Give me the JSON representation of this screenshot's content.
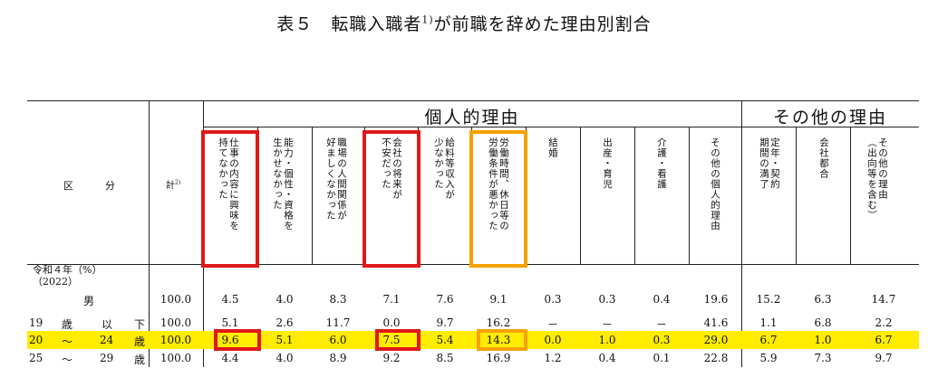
{
  "title": {
    "prefix": "表５　転職入職者",
    "sup": "1)",
    "rest": "が前職を辞めた理由別割合"
  },
  "header": {
    "personal": "個人的理由",
    "other": "その他の理由",
    "kubun_left": "区",
    "kubun_right": "分",
    "total": "計",
    "total_sup": "2)",
    "columns": [
      "仕事の内容に興味を\n持てなかった",
      "能力・個性・資格を\n生かせなかった",
      "職場の人間関係が\n好ましくなかった",
      "会社の将来が\n不安だった",
      "給料等収入が\n少なかった",
      "労働時間、休日等の\n労働条件が悪かった",
      "結婚",
      "出産・育児",
      "介護・看護",
      "その他の個人的理由",
      "定年・契約\n期間の満了",
      "会社都合",
      "その他の理由\n（出向等を含む）"
    ]
  },
  "year": {
    "line1": "令和４年（%）",
    "line2": "（2022）"
  },
  "rows": [
    {
      "labels": [
        "男"
      ],
      "total": "100.0",
      "values": [
        "4.5",
        "4.0",
        "8.3",
        "7.1",
        "7.6",
        "9.1",
        "0.3",
        "0.3",
        "0.4",
        "19.6",
        "15.2",
        "6.3",
        "14.7"
      ]
    },
    {
      "labels": [
        "19",
        "歳",
        "以",
        "下"
      ],
      "total": "100.0",
      "values": [
        "5.1",
        "2.6",
        "11.7",
        "0.0",
        "9.7",
        "16.2",
        "－",
        "－",
        "－",
        "41.6",
        "1.1",
        "6.8",
        "2.2"
      ]
    },
    {
      "labels": [
        "20",
        "～",
        "24",
        "歳"
      ],
      "total": "100.0",
      "values": [
        "9.6",
        "5.1",
        "6.0",
        "7.5",
        "5.4",
        "14.3",
        "0.0",
        "1.0",
        "0.3",
        "29.0",
        "6.7",
        "1.0",
        "6.7"
      ]
    },
    {
      "labels": [
        "25",
        "～",
        "29",
        "歳"
      ],
      "total": "100.0",
      "values": [
        "4.4",
        "4.0",
        "8.9",
        "9.2",
        "8.5",
        "16.9",
        "1.2",
        "0.4",
        "0.1",
        "22.8",
        "5.9",
        "7.3",
        "9.7"
      ]
    }
  ],
  "colors": {
    "highlight": "#ffec00",
    "red_box": "#e01818",
    "orange_box": "#f5a200"
  }
}
